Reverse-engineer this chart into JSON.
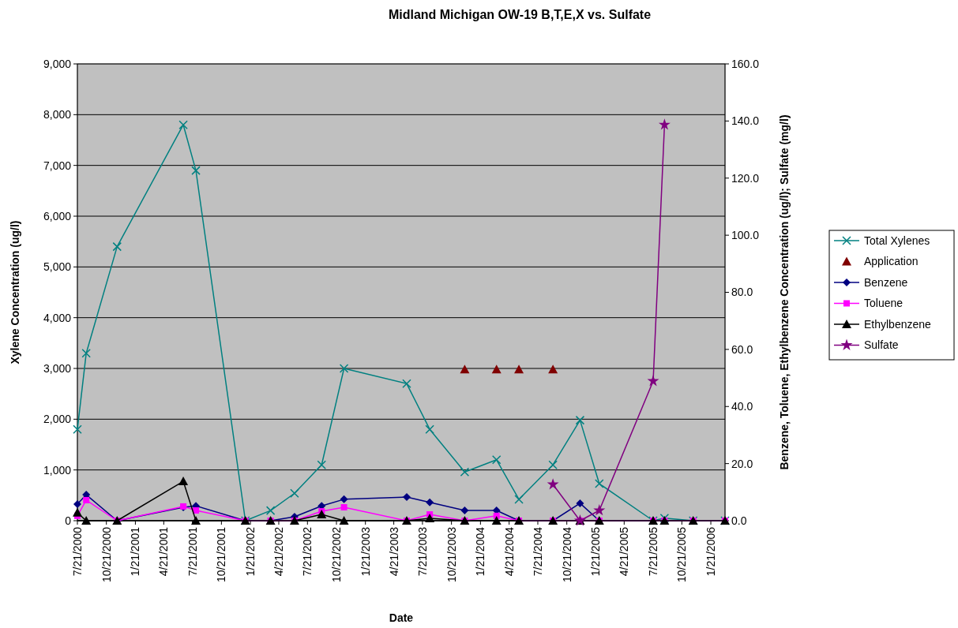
{
  "chart_data": {
    "type": "line",
    "title": "Midland Michigan OW-19 B,T,E,X vs. Sulfate",
    "xlabel": "Date",
    "ylabel": "Xylene Concentration (ug/l)",
    "y2label": "Benzene, Toluene, Ethylbenzene Concentration (ug/l); Sulfate (mg/l)",
    "x": [
      "2000-07-21",
      "2000-08-18",
      "2000-11-24",
      "2001-06-22",
      "2001-08-01",
      "2002-01-05",
      "2002-03-26",
      "2002-06-10",
      "2002-09-04",
      "2002-11-14",
      "2003-06-01",
      "2003-08-13",
      "2003-12-02",
      "2004-03-12",
      "2004-05-22",
      "2004-09-07",
      "2004-12-02",
      "2005-02-01",
      "2005-07-22",
      "2005-08-27",
      "2005-11-26",
      "2006-03-07"
    ],
    "xlim": [
      "2000-07-21",
      "2006-03-07"
    ],
    "xticks": [
      {
        "value": "2000-07-21",
        "label": "7/21/2000"
      },
      {
        "value": "2000-10-21",
        "label": "10/21/2000"
      },
      {
        "value": "2001-01-21",
        "label": "1/21/2001"
      },
      {
        "value": "2001-04-21",
        "label": "4/21/2001"
      },
      {
        "value": "2001-07-21",
        "label": "7/21/2001"
      },
      {
        "value": "2001-10-21",
        "label": "10/21/2001"
      },
      {
        "value": "2002-01-21",
        "label": "1/21/2002"
      },
      {
        "value": "2002-04-21",
        "label": "4/21/2002"
      },
      {
        "value": "2002-07-21",
        "label": "7/21/2002"
      },
      {
        "value": "2002-10-21",
        "label": "10/21/2002"
      },
      {
        "value": "2003-01-21",
        "label": "1/21/2003"
      },
      {
        "value": "2003-04-21",
        "label": "4/21/2003"
      },
      {
        "value": "2003-07-21",
        "label": "7/21/2003"
      },
      {
        "value": "2003-10-21",
        "label": "10/21/2003"
      },
      {
        "value": "2004-01-21",
        "label": "1/21/2004"
      },
      {
        "value": "2004-04-21",
        "label": "4/21/2004"
      },
      {
        "value": "2004-07-21",
        "label": "7/21/2004"
      },
      {
        "value": "2004-10-21",
        "label": "10/21/2004"
      },
      {
        "value": "2005-01-21",
        "label": "1/21/2005"
      },
      {
        "value": "2005-04-21",
        "label": "4/21/2005"
      },
      {
        "value": "2005-07-21",
        "label": "7/21/2005"
      },
      {
        "value": "2005-10-21",
        "label": "10/21/2005"
      },
      {
        "value": "2006-01-21",
        "label": "1/21/2006"
      }
    ],
    "ylim": [
      0,
      9000
    ],
    "yticks": [
      {
        "value": 0,
        "label": "0"
      },
      {
        "value": 1000,
        "label": "1,000"
      },
      {
        "value": 2000,
        "label": "2,000"
      },
      {
        "value": 3000,
        "label": "3,000"
      },
      {
        "value": 4000,
        "label": "4,000"
      },
      {
        "value": 5000,
        "label": "5,000"
      },
      {
        "value": 6000,
        "label": "6,000"
      },
      {
        "value": 7000,
        "label": "7,000"
      },
      {
        "value": 8000,
        "label": "8,000"
      },
      {
        "value": 9000,
        "label": "9,000"
      }
    ],
    "y2lim": [
      0,
      160
    ],
    "y2ticks": [
      {
        "value": 0,
        "label": "0.0"
      },
      {
        "value": 20,
        "label": "20.0"
      },
      {
        "value": 40,
        "label": "40.0"
      },
      {
        "value": 60,
        "label": "60.0"
      },
      {
        "value": 80,
        "label": "80.0"
      },
      {
        "value": 100,
        "label": "100.0"
      },
      {
        "value": 120,
        "label": "120.0"
      },
      {
        "value": 140,
        "label": "140.0"
      },
      {
        "value": 160,
        "label": "160.0"
      }
    ],
    "grid": "y",
    "legend": "right",
    "line_style": "solid",
    "series": [
      {
        "name": "Total Xylenes",
        "color": "#008080",
        "marker": "cross",
        "values": [
          1800,
          3300,
          5400,
          7800,
          6900,
          0,
          200,
          540,
          1100,
          3000,
          2700,
          1800,
          960,
          1200,
          420,
          1100,
          1980,
          730,
          0,
          50,
          0,
          0
        ]
      },
      {
        "name": "Application",
        "type": "scatter",
        "axis": "y2",
        "color": "#800000",
        "marker": "triangle",
        "values": [
          null,
          null,
          null,
          null,
          null,
          null,
          null,
          null,
          null,
          null,
          null,
          null,
          53,
          53,
          53,
          53,
          null,
          null,
          null,
          null,
          null,
          null
        ]
      },
      {
        "name": "Benzene",
        "axis": "y2",
        "color": "#000080",
        "marker": "diamond",
        "values": [
          5.8,
          9.1,
          0,
          4.7,
          5.2,
          0,
          0,
          1.4,
          5.2,
          7.5,
          8.3,
          6.4,
          3.6,
          3.6,
          0,
          0,
          6.1,
          0,
          0,
          null,
          null,
          null
        ]
      },
      {
        "name": "Toluene",
        "axis": "y2",
        "color": "#ff00ff",
        "marker": "square",
        "values": [
          1.7,
          7.2,
          0,
          5,
          3.6,
          0,
          0,
          0,
          3.3,
          4.7,
          0,
          2.2,
          0,
          1.7,
          0,
          0,
          0,
          0,
          0,
          0,
          0,
          0
        ]
      },
      {
        "name": "Ethylbenzene",
        "axis": "y2",
        "color": "#000000",
        "marker": "triangle",
        "values": [
          2.8,
          0,
          0,
          13.8,
          0,
          0,
          0,
          0,
          2.2,
          0,
          0,
          0.8,
          0,
          0,
          0,
          0,
          0,
          0,
          0,
          0,
          0,
          0
        ]
      },
      {
        "name": "Sulfate",
        "axis": "y2",
        "color": "#800080",
        "marker": "star",
        "values": [
          null,
          null,
          null,
          null,
          null,
          null,
          null,
          null,
          null,
          null,
          null,
          null,
          null,
          null,
          null,
          12.7,
          0,
          3.6,
          48.9,
          138.7,
          null,
          null
        ]
      }
    ]
  }
}
